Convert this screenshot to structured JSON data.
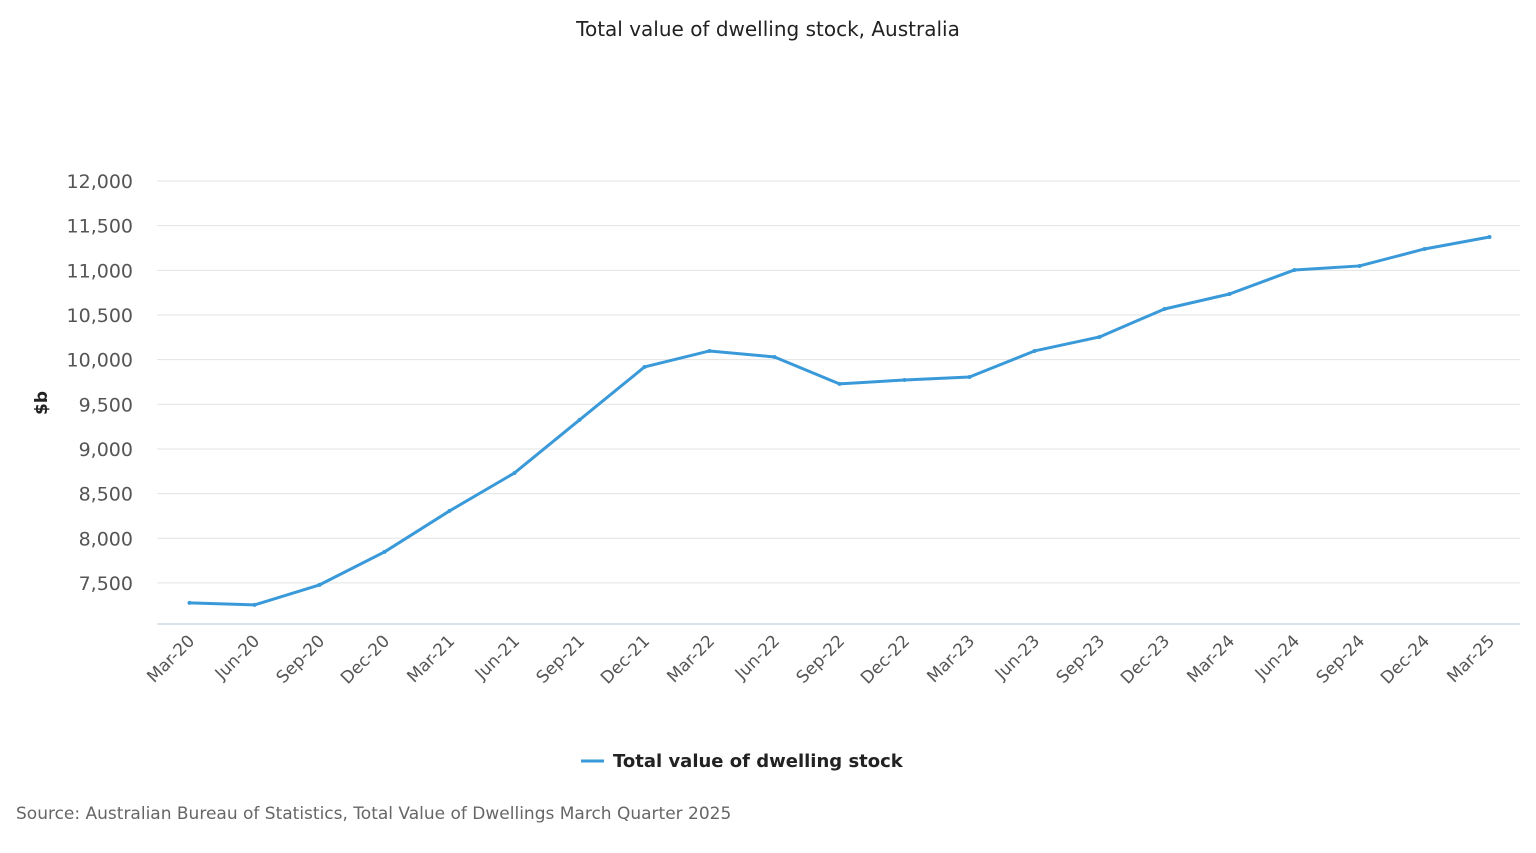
{
  "chart_data": {
    "type": "line",
    "title": "Total value of dwelling stock, Australia",
    "ylabel": "$b",
    "xlabel": "",
    "ylim": [
      7040,
      12000
    ],
    "yticks": [
      "7,500",
      "8,000",
      "8,500",
      "9,000",
      "9,500",
      "10,000",
      "10,500",
      "11,000",
      "11,500",
      "12,000"
    ],
    "ytick_values": [
      7500,
      8000,
      8500,
      9000,
      9500,
      10000,
      10500,
      11000,
      11500,
      12000
    ],
    "grid": true,
    "legend": "bottom-center",
    "categories": [
      "Mar-20",
      "Jun-20",
      "Sep-20",
      "Dec-20",
      "Mar-21",
      "Jun-21",
      "Sep-21",
      "Dec-21",
      "Mar-22",
      "Jun-22",
      "Sep-22",
      "Dec-22",
      "Mar-23",
      "Jun-23",
      "Sep-23",
      "Dec-23",
      "Mar-24",
      "Jun-24",
      "Sep-24",
      "Dec-24",
      "Mar-25"
    ],
    "series": [
      {
        "name": "Total value of dwelling stock",
        "color": "#3a9ad9",
        "values": [
          7276,
          7254,
          7478,
          7847,
          8306,
          8731,
          9325,
          9918,
          10097,
          10030,
          9728,
          9772,
          9806,
          10097,
          10254,
          10567,
          10735,
          11004,
          11049,
          11239,
          11373
        ]
      }
    ],
    "source": "Source: Australian Bureau of Statistics, Total Value of Dwellings March Quarter 2025"
  }
}
